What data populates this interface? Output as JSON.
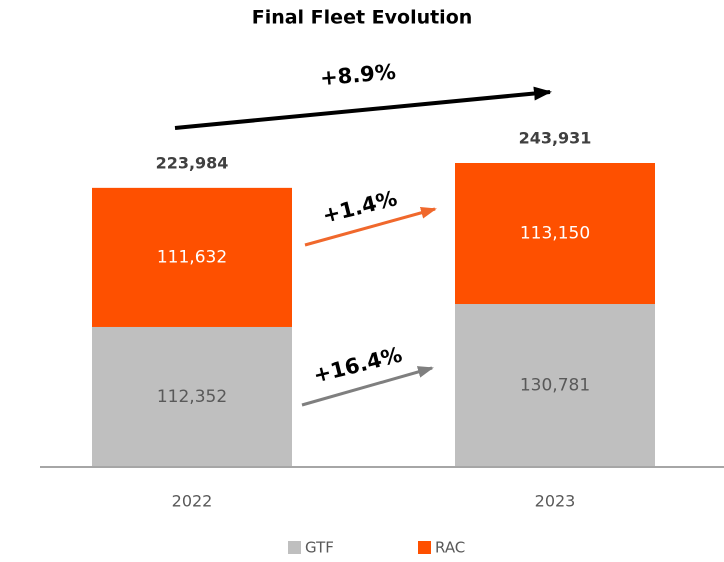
{
  "chart_data": {
    "type": "stacked_bar",
    "title": "Final Fleet Evolution",
    "categories": [
      "2022",
      "2023"
    ],
    "series": [
      {
        "name": "GTF",
        "color": "#bfbfbf",
        "values": [
          112352,
          130781
        ],
        "value_labels": [
          "112,352",
          "130,781"
        ]
      },
      {
        "name": "RAC",
        "color": "#fe5000",
        "values": [
          111632,
          113150
        ],
        "value_labels": [
          "111,632",
          "113,150"
        ]
      }
    ],
    "totals": {
      "values": [
        223984,
        243931
      ],
      "value_labels": [
        "223,984",
        "243,931"
      ]
    },
    "annotations": [
      "+8.9%",
      "+1.4%",
      "+16.4%"
    ],
    "legend": "bottom"
  }
}
